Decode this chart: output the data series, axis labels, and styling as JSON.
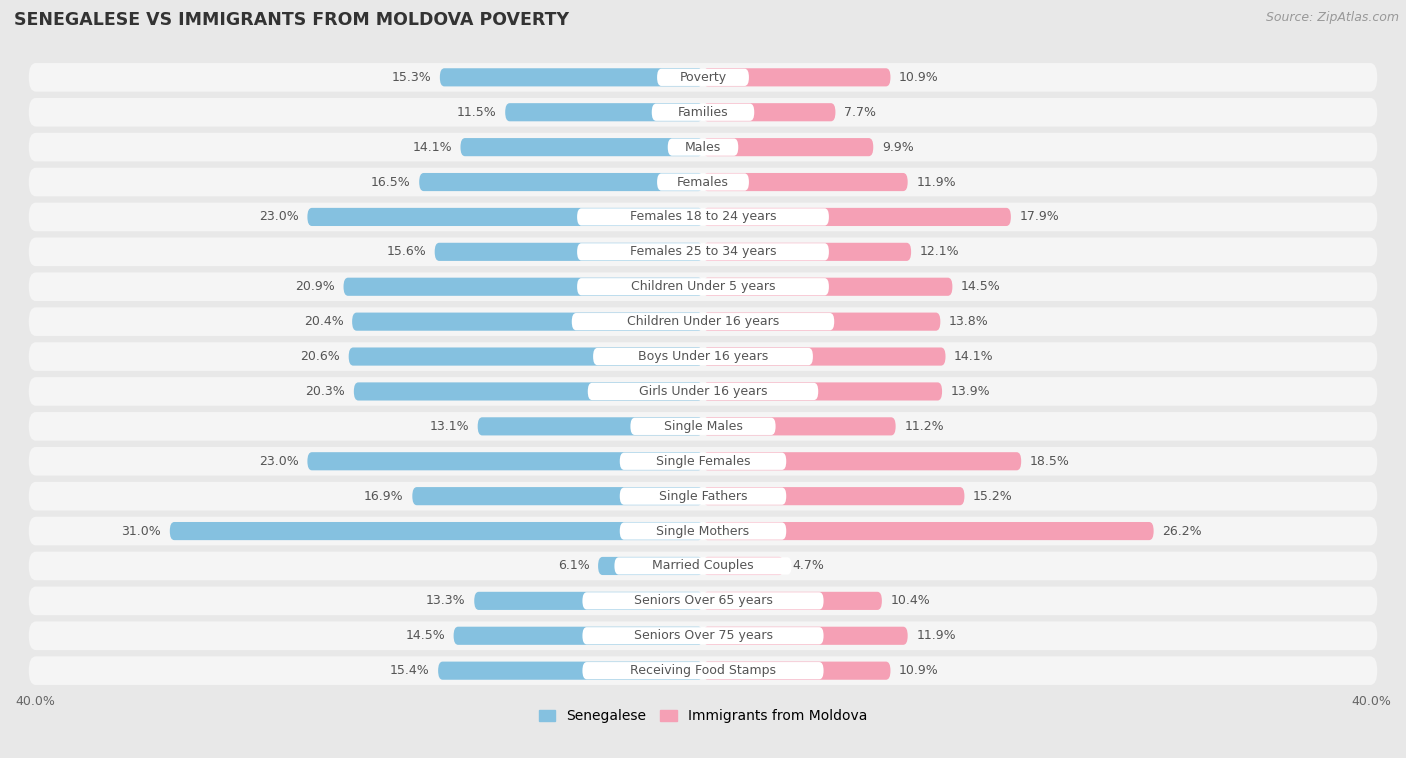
{
  "title": "SENEGALESE VS IMMIGRANTS FROM MOLDOVA POVERTY",
  "source": "Source: ZipAtlas.com",
  "categories": [
    "Poverty",
    "Families",
    "Males",
    "Females",
    "Females 18 to 24 years",
    "Females 25 to 34 years",
    "Children Under 5 years",
    "Children Under 16 years",
    "Boys Under 16 years",
    "Girls Under 16 years",
    "Single Males",
    "Single Females",
    "Single Fathers",
    "Single Mothers",
    "Married Couples",
    "Seniors Over 65 years",
    "Seniors Over 75 years",
    "Receiving Food Stamps"
  ],
  "senegalese": [
    15.3,
    11.5,
    14.1,
    16.5,
    23.0,
    15.6,
    20.9,
    20.4,
    20.6,
    20.3,
    13.1,
    23.0,
    16.9,
    31.0,
    6.1,
    13.3,
    14.5,
    15.4
  ],
  "moldova": [
    10.9,
    7.7,
    9.9,
    11.9,
    17.9,
    12.1,
    14.5,
    13.8,
    14.1,
    13.9,
    11.2,
    18.5,
    15.2,
    26.2,
    4.7,
    10.4,
    11.9,
    10.9
  ],
  "senegalese_color": "#85C1E0",
  "moldova_color": "#F5A0B5",
  "background_color": "#e8e8e8",
  "row_bg_color": "#f5f5f5",
  "xlim": 40.0,
  "legend_labels": [
    "Senegalese",
    "Immigrants from Moldova"
  ],
  "label_fontsize": 9.0,
  "category_fontsize": 9.0,
  "title_fontsize": 12.5,
  "source_fontsize": 9.0,
  "axis_fontsize": 9.0
}
